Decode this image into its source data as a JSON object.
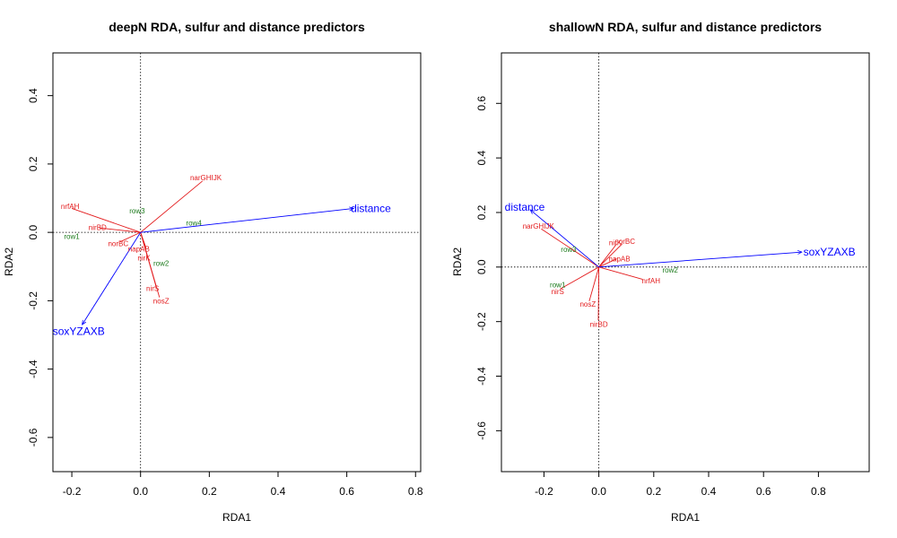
{
  "chart_data": [
    {
      "type": "scatter",
      "title": "deepN RDA, sulfur and distance predictors",
      "xlabel": "RDA1",
      "ylabel": "RDA2",
      "xlim": [
        -0.255,
        0.815
      ],
      "ylim": [
        -0.7,
        0.525
      ],
      "xticks": [
        -0.2,
        0.0,
        0.2,
        0.4,
        0.6,
        0.8
      ],
      "xtick_labels": [
        "-0.2",
        "0.0",
        "0.2",
        "0.4",
        "0.6",
        "0.8"
      ],
      "yticks": [
        -0.6,
        -0.4,
        -0.2,
        0.0,
        0.2,
        0.4
      ],
      "ytick_labels": [
        "-0.6",
        "-0.4",
        "-0.2",
        "0.0",
        "0.2",
        "0.4"
      ],
      "grid": false,
      "reference_lines": "dotted x=0 and y=0",
      "colors": {
        "species": "#e31a1c",
        "sites": "#1b7a1b",
        "env": "#0000ff"
      },
      "species": [
        {
          "label": "narGHIJK",
          "x": 0.19,
          "y": 0.16,
          "tip_x": 0.18,
          "tip_y": 0.15
        },
        {
          "label": "nrfAH",
          "x": -0.205,
          "y": 0.077,
          "tip_x": -0.2,
          "tip_y": 0.07
        },
        {
          "label": "nirBD",
          "x": -0.125,
          "y": 0.015,
          "tip_x": -0.12,
          "tip_y": 0.013
        },
        {
          "label": "norBC",
          "x": -0.065,
          "y": -0.033,
          "tip_x": -0.06,
          "tip_y": -0.028
        },
        {
          "label": "napAB",
          "x": -0.005,
          "y": -0.048,
          "tip_x": 0.015,
          "tip_y": -0.043
        },
        {
          "label": "nirK",
          "x": 0.01,
          "y": -0.075,
          "tip_x": 0.02,
          "tip_y": -0.07
        },
        {
          "label": "nirS",
          "x": 0.035,
          "y": -0.163,
          "tip_x": 0.045,
          "tip_y": -0.158
        },
        {
          "label": "nosZ",
          "x": 0.06,
          "y": -0.2,
          "tip_x": 0.055,
          "tip_y": -0.19
        }
      ],
      "sites": [
        {
          "label": "row3",
          "x": -0.01,
          "y": 0.063
        },
        {
          "label": "row4",
          "x": 0.155,
          "y": 0.028
        },
        {
          "label": "row1",
          "x": -0.2,
          "y": -0.011
        },
        {
          "label": "row2",
          "x": 0.06,
          "y": -0.09
        }
      ],
      "env": [
        {
          "label": "distance",
          "x": 0.62,
          "y": 0.07,
          "label_x": 0.67,
          "label_y": 0.07
        },
        {
          "label": "soxYZAXB",
          "x": -0.17,
          "y": -0.27,
          "label_x": -0.18,
          "label_y": -0.29
        }
      ]
    },
    {
      "type": "scatter",
      "title": "shallowN RDA, sulfur and distance predictors",
      "xlabel": "RDA1",
      "ylabel": "RDA2",
      "xlim": [
        -0.355,
        0.985
      ],
      "ylim": [
        -0.75,
        0.785
      ],
      "xticks": [
        -0.2,
        0.0,
        0.2,
        0.4,
        0.6,
        0.8
      ],
      "xtick_labels": [
        "-0.2",
        "0.0",
        "0.2",
        "0.4",
        "0.6",
        "0.8"
      ],
      "yticks": [
        -0.6,
        -0.4,
        -0.2,
        0.0,
        0.2,
        0.4,
        0.6
      ],
      "ytick_labels": [
        "-0.6",
        "-0.4",
        "-0.2",
        "0.0",
        "0.2",
        "0.4",
        "0.6"
      ],
      "grid": false,
      "reference_lines": "dotted x=0 and y=0",
      "colors": {
        "species": "#e31a1c",
        "sites": "#1b7a1b",
        "env": "#0000ff"
      },
      "species": [
        {
          "label": "narGHIJK",
          "x": -0.22,
          "y": 0.15,
          "tip_x": -0.21,
          "tip_y": 0.14
        },
        {
          "label": "nirK",
          "x": 0.06,
          "y": 0.09,
          "tip_x": 0.065,
          "tip_y": 0.085
        },
        {
          "label": "norBC",
          "x": 0.095,
          "y": 0.095,
          "tip_x": 0.085,
          "tip_y": 0.085
        },
        {
          "label": "napAB",
          "x": 0.075,
          "y": 0.03,
          "tip_x": 0.065,
          "tip_y": 0.03
        },
        {
          "label": "nrfAH",
          "x": 0.19,
          "y": -0.05,
          "tip_x": 0.16,
          "tip_y": -0.045
        },
        {
          "label": "nirS",
          "x": -0.15,
          "y": -0.09,
          "tip_x": -0.14,
          "tip_y": -0.08
        },
        {
          "label": "nosZ",
          "x": -0.04,
          "y": -0.135,
          "tip_x": -0.035,
          "tip_y": -0.125
        },
        {
          "label": "nirBD",
          "x": 0.0,
          "y": -0.21,
          "tip_x": -0.002,
          "tip_y": -0.195
        }
      ],
      "sites": [
        {
          "label": "row3",
          "x": -0.11,
          "y": 0.065
        },
        {
          "label": "row1",
          "x": -0.15,
          "y": -0.065
        },
        {
          "label": "row2",
          "x": 0.26,
          "y": -0.01
        }
      ],
      "env": [
        {
          "label": "distance",
          "x": -0.25,
          "y": 0.21,
          "label_x": -0.27,
          "label_y": 0.22
        },
        {
          "label": "soxYZAXB",
          "x": 0.74,
          "y": 0.055,
          "label_x": 0.84,
          "label_y": 0.055
        }
      ]
    }
  ]
}
